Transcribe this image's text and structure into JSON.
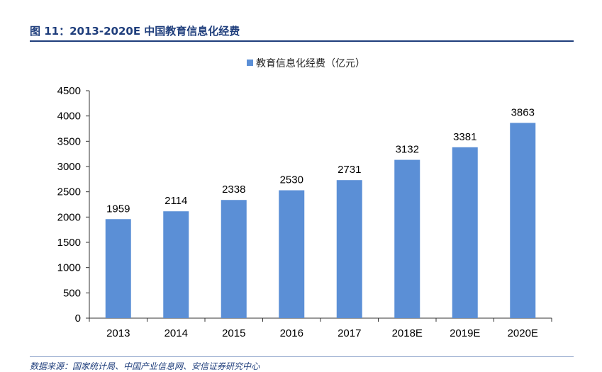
{
  "header": {
    "title": "图 11：2013-2020E 中国教育信息化经费"
  },
  "footer": {
    "source": "数据来源：国家统计局、中国产业信息网、安信证券研究中心"
  },
  "colors": {
    "bar": "#5b8fd6",
    "title": "#1f3e7c",
    "axis": "#333333"
  },
  "chart_data": {
    "type": "bar",
    "categories": [
      "2013",
      "2014",
      "2015",
      "2016",
      "2017",
      "2018E",
      "2019E",
      "2020E"
    ],
    "series": [
      {
        "name": "教育信息化经费（亿元）",
        "values": [
          1959,
          2114,
          2338,
          2530,
          2731,
          3132,
          3381,
          3863
        ]
      }
    ],
    "ylim": [
      0,
      4500
    ],
    "yticks": [
      0,
      500,
      1000,
      1500,
      2000,
      2500,
      3000,
      3500,
      4000,
      4500
    ],
    "legend_position": "top-center",
    "grid": false,
    "data_labels": true
  }
}
